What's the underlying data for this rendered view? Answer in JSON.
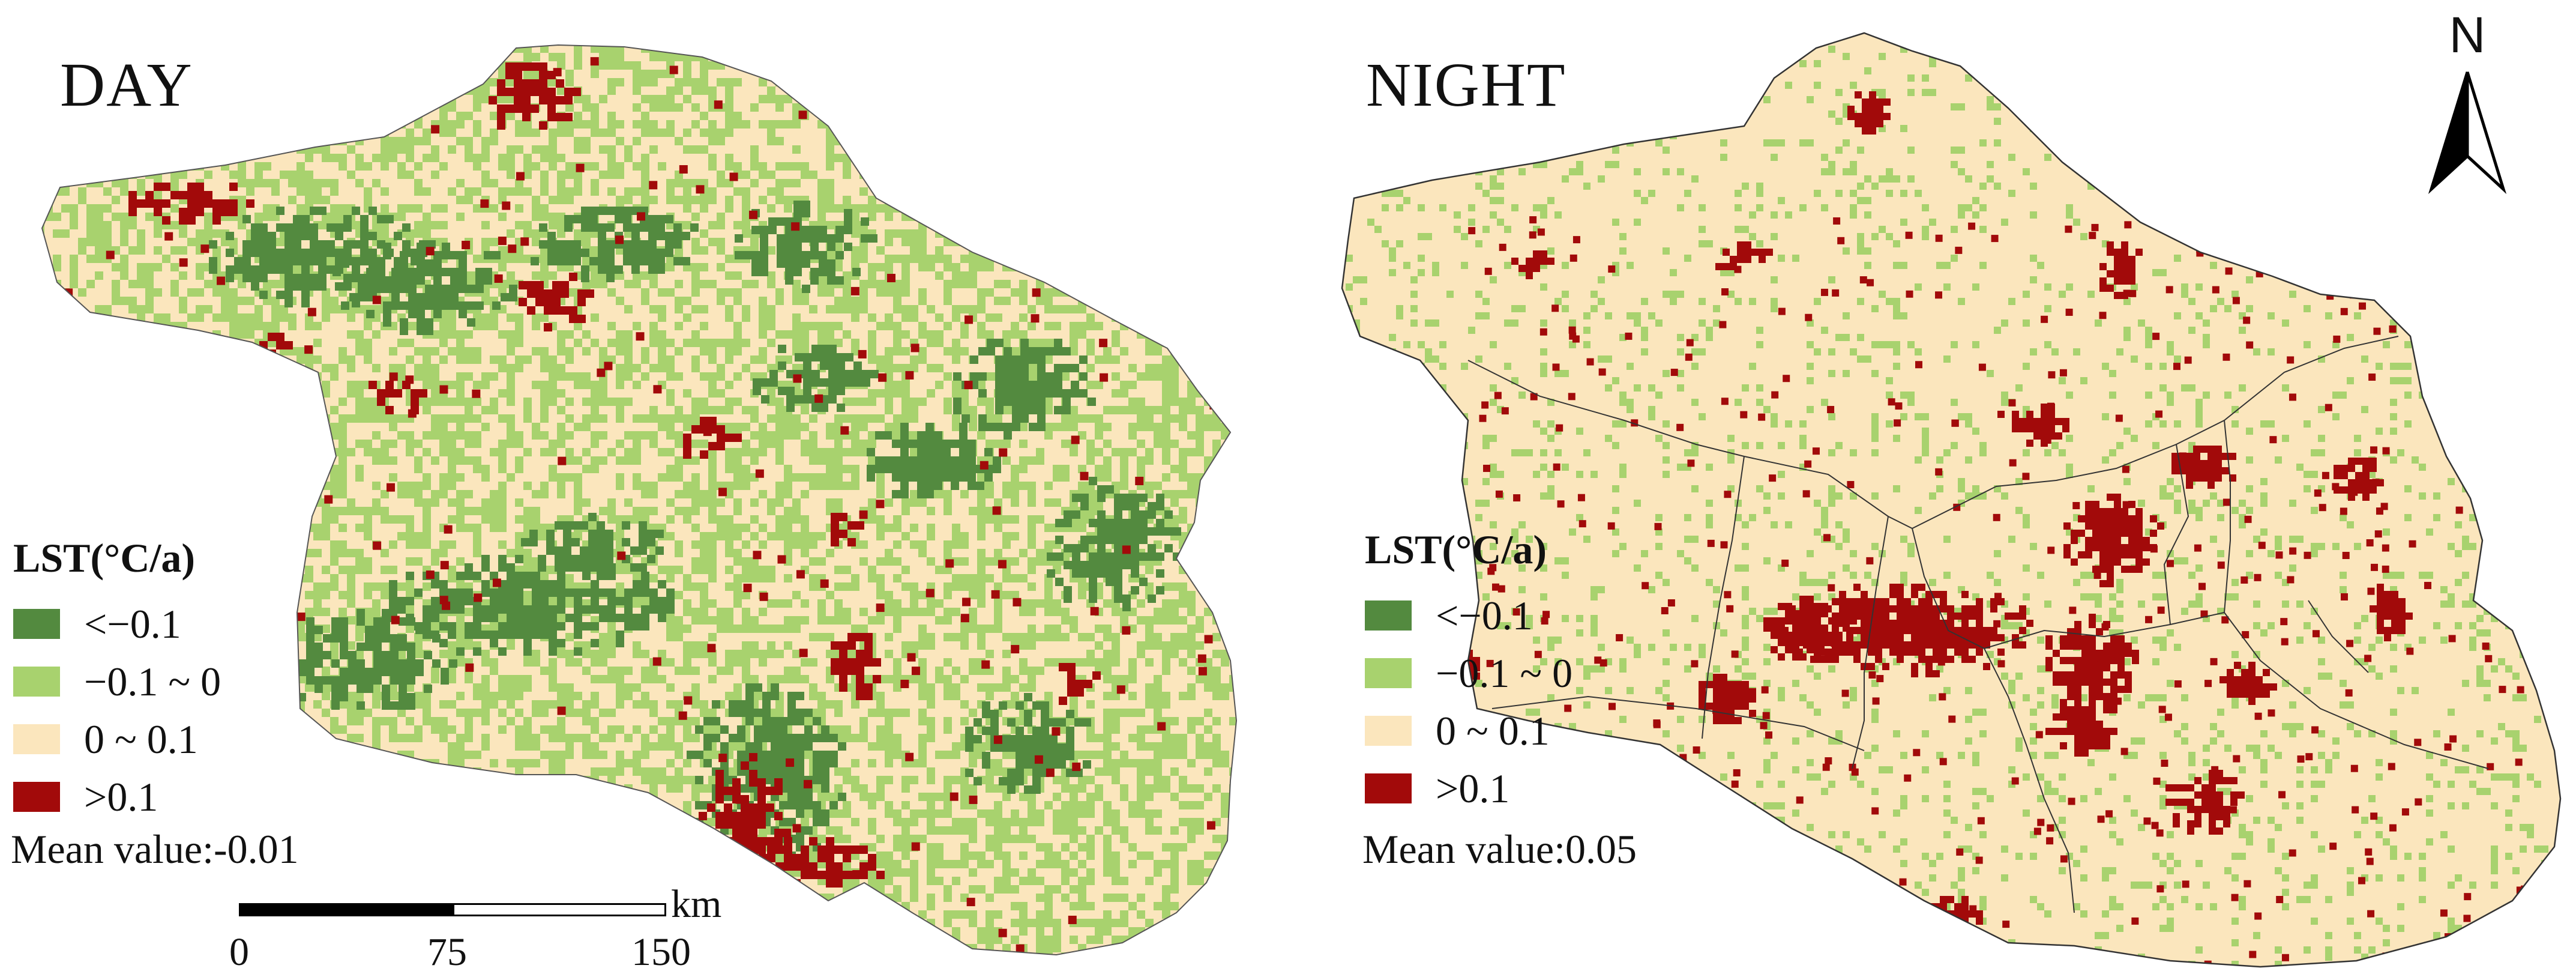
{
  "colors": {
    "lt_neg01": "#538a3f",
    "neg01_0": "#a8d26e",
    "0_01": "#fbe6bd",
    "gt01": "#a20a0a",
    "boundary": "#333333"
  },
  "panels": [
    {
      "title": "DAY",
      "legend_title": "LST(°C/a)",
      "legend": [
        {
          "label": "<−0.1",
          "color_key": "lt_neg01"
        },
        {
          "label": "−0.1 ~ 0",
          "color_key": "neg01_0"
        },
        {
          "label": "0 ~ 0.1",
          "color_key": "0_01"
        },
        {
          "label": ">0.1",
          "color_key": "gt01"
        }
      ],
      "mean_value": "Mean value:-0.01",
      "class_shares": {
        "lt_neg01": 0.2,
        "neg01_0": 0.42,
        "0_01": 0.32,
        "gt01": 0.06
      }
    },
    {
      "title": "NIGHT",
      "legend_title": "LST(°C/a)",
      "legend": [
        {
          "label": "<−0.1",
          "color_key": "lt_neg01"
        },
        {
          "label": "−0.1 ~ 0",
          "color_key": "neg01_0"
        },
        {
          "label": "0 ~ 0.1",
          "color_key": "0_01"
        },
        {
          "label": ">0.1",
          "color_key": "gt01"
        }
      ],
      "mean_value": "Mean value:0.05",
      "class_shares": {
        "lt_neg01": 0.0,
        "neg01_0": 0.12,
        "0_01": 0.76,
        "gt01": 0.12
      }
    }
  ],
  "scale_bar": {
    "unit": "km",
    "ticks": [
      "0",
      "75",
      "150"
    ]
  },
  "north_arrow": {
    "label": "N",
    "icon": "north-arrow-icon"
  }
}
